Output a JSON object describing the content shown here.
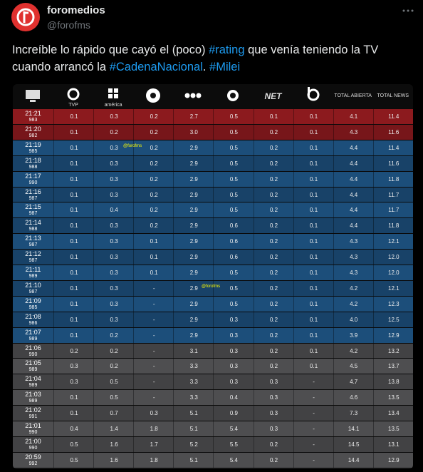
{
  "header": {
    "name": "foromedios",
    "handle": "@forofms"
  },
  "tweet": {
    "text_parts": [
      "Increíble lo rápido que cayó el (poco) ",
      "#rating",
      " que venía teniendo la TV cuando arrancó la ",
      "#CadenaNacional",
      ". ",
      "#Milei"
    ]
  },
  "table": {
    "watermark": "@forofms",
    "columns": [
      null,
      "TVP",
      "américa",
      null,
      null,
      null,
      "NET",
      null,
      "TOTAL ABIERTA",
      "TOTAL NEWS"
    ],
    "rows": [
      {
        "time": "21:21",
        "viewers": "983",
        "cells": [
          "0.1",
          "0.3",
          "0.2",
          "2.7",
          "0.5",
          "0.1",
          "0.1",
          "4.1",
          "11.4"
        ]
      },
      {
        "time": "21:20",
        "viewers": "982",
        "cells": [
          "0.1",
          "0.2",
          "0.2",
          "3.0",
          "0.5",
          "0.2",
          "0.1",
          "4.3",
          "11.6"
        ]
      },
      {
        "time": "21:19",
        "viewers": "985",
        "cells": [
          "0.1",
          "0.3",
          "0.2",
          "2.9",
          "0.5",
          "0.2",
          "0.1",
          "4.4",
          "11.4"
        ]
      },
      {
        "time": "21:18",
        "viewers": "988",
        "cells": [
          "0.1",
          "0.3",
          "0.2",
          "2.9",
          "0.5",
          "0.2",
          "0.1",
          "4.4",
          "11.6"
        ]
      },
      {
        "time": "21:17",
        "viewers": "990",
        "cells": [
          "0.1",
          "0.3",
          "0.2",
          "2.9",
          "0.5",
          "0.2",
          "0.1",
          "4.4",
          "11.8"
        ]
      },
      {
        "time": "21:16",
        "viewers": "987",
        "cells": [
          "0.1",
          "0.3",
          "0.2",
          "2.9",
          "0.5",
          "0.2",
          "0.1",
          "4.4",
          "11.7"
        ]
      },
      {
        "time": "21:15",
        "viewers": "987",
        "cells": [
          "0.1",
          "0.4",
          "0.2",
          "2.9",
          "0.5",
          "0.2",
          "0.1",
          "4.4",
          "11.7"
        ]
      },
      {
        "time": "21:14",
        "viewers": "988",
        "cells": [
          "0.1",
          "0.3",
          "0.2",
          "2.9",
          "0.6",
          "0.2",
          "0.1",
          "4.4",
          "11.8"
        ]
      },
      {
        "time": "21:13",
        "viewers": "987",
        "cells": [
          "0.1",
          "0.3",
          "0.1",
          "2.9",
          "0.6",
          "0.2",
          "0.1",
          "4.3",
          "12.1"
        ]
      },
      {
        "time": "21:12",
        "viewers": "987",
        "cells": [
          "0.1",
          "0.3",
          "0.1",
          "2.9",
          "0.6",
          "0.2",
          "0.1",
          "4.3",
          "12.0"
        ]
      },
      {
        "time": "21:11",
        "viewers": "989",
        "cells": [
          "0.1",
          "0.3",
          "0.1",
          "2.9",
          "0.5",
          "0.2",
          "0.1",
          "4.3",
          "12.0"
        ]
      },
      {
        "time": "21:10",
        "viewers": "987",
        "cells": [
          "0.1",
          "0.3",
          "-",
          "2.9",
          "0.5",
          "0.2",
          "0.1",
          "4.2",
          "12.1"
        ]
      },
      {
        "time": "21:09",
        "viewers": "985",
        "cells": [
          "0.1",
          "0.3",
          "-",
          "2.9",
          "0.5",
          "0.2",
          "0.1",
          "4.2",
          "12.3"
        ]
      },
      {
        "time": "21:08",
        "viewers": "986",
        "cells": [
          "0.1",
          "0.3",
          "-",
          "2.9",
          "0.3",
          "0.2",
          "0.1",
          "4.0",
          "12.5"
        ]
      },
      {
        "time": "21:07",
        "viewers": "989",
        "cells": [
          "0.1",
          "0.2",
          "-",
          "2.9",
          "0.3",
          "0.2",
          "0.1",
          "3.9",
          "12.9"
        ]
      },
      {
        "time": "21:06",
        "viewers": "990",
        "cells": [
          "0.2",
          "0.2",
          "-",
          "3.1",
          "0.3",
          "0.2",
          "0.1",
          "4.2",
          "13.2"
        ]
      },
      {
        "time": "21:05",
        "viewers": "989",
        "cells": [
          "0.3",
          "0.2",
          "-",
          "3.3",
          "0.3",
          "0.2",
          "0.1",
          "4.5",
          "13.7"
        ]
      },
      {
        "time": "21:04",
        "viewers": "989",
        "cells": [
          "0.3",
          "0.5",
          "-",
          "3.3",
          "0.3",
          "0.3",
          "-",
          "4.7",
          "13.8"
        ]
      },
      {
        "time": "21:03",
        "viewers": "989",
        "cells": [
          "0.1",
          "0.5",
          "-",
          "3.3",
          "0.4",
          "0.3",
          "-",
          "4.6",
          "13.5"
        ]
      },
      {
        "time": "21:02",
        "viewers": "991",
        "cells": [
          "0.1",
          "0.7",
          "0.3",
          "5.1",
          "0.9",
          "0.3",
          "-",
          "7.3",
          "13.4"
        ]
      },
      {
        "time": "21:01",
        "viewers": "990",
        "cells": [
          "0.4",
          "1.4",
          "1.8",
          "5.1",
          "5.4",
          "0.3",
          "-",
          "14.1",
          "13.5"
        ]
      },
      {
        "time": "21:00",
        "viewers": "990",
        "cells": [
          "0.5",
          "1.6",
          "1.7",
          "5.2",
          "5.5",
          "0.2",
          "-",
          "14.5",
          "13.1"
        ]
      },
      {
        "time": "20:59",
        "viewers": "992",
        "cells": [
          "0.5",
          "1.6",
          "1.8",
          "5.1",
          "5.4",
          "0.2",
          "-",
          "14.4",
          "12.9"
        ]
      }
    ]
  }
}
